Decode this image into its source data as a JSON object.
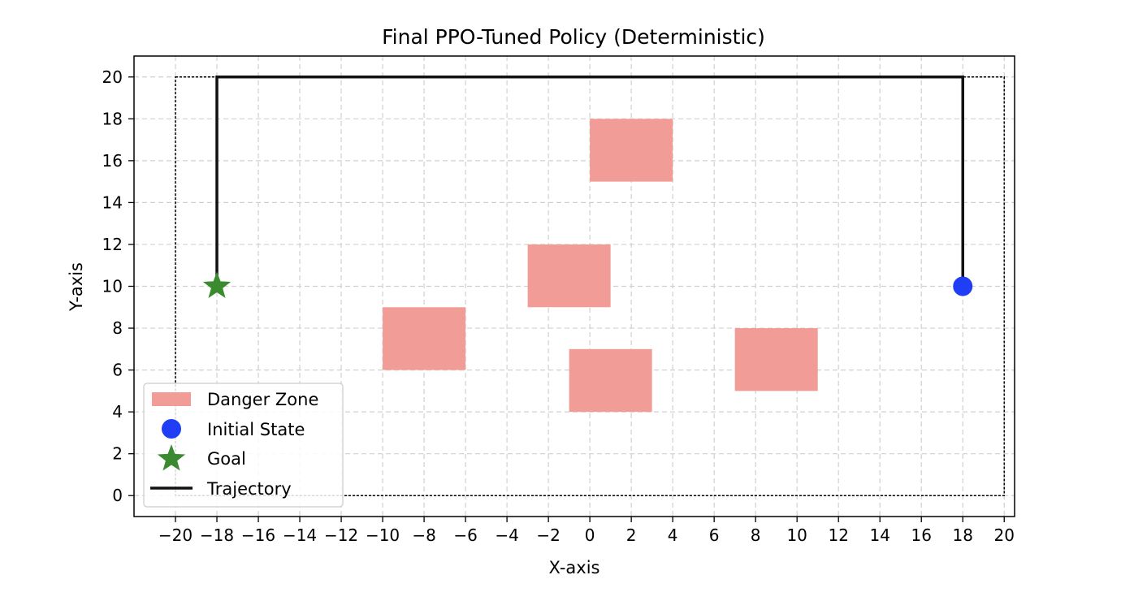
{
  "chart_data": {
    "type": "scatter",
    "title": "Final PPO-Tuned Policy (Deterministic)",
    "xlabel": "X-axis",
    "ylabel": "Y-axis",
    "xlim": [
      -22,
      20.5
    ],
    "ylim": [
      -1,
      21
    ],
    "xticks": [
      -20,
      -18,
      -16,
      -14,
      -12,
      -10,
      -8,
      -6,
      -4,
      -2,
      0,
      2,
      4,
      6,
      8,
      10,
      12,
      14,
      16,
      18,
      20
    ],
    "yticks": [
      0,
      2,
      4,
      6,
      8,
      10,
      12,
      14,
      16,
      18,
      20
    ],
    "grid": true,
    "boundary": {
      "x": [
        -20,
        20
      ],
      "y": [
        0,
        20
      ]
    },
    "danger_zones": [
      {
        "x": 0,
        "y": 15,
        "width": 4,
        "height": 3
      },
      {
        "x": -3,
        "y": 9,
        "width": 4,
        "height": 3
      },
      {
        "x": -10,
        "y": 6,
        "width": 4,
        "height": 3
      },
      {
        "x": -1,
        "y": 4,
        "width": 4,
        "height": 3
      },
      {
        "x": 7,
        "y": 5,
        "width": 4,
        "height": 3
      }
    ],
    "initial_state": {
      "x": 18,
      "y": 10
    },
    "goal": {
      "x": -18,
      "y": 10
    },
    "trajectory": {
      "x": [
        18,
        18,
        -18,
        -18
      ],
      "y": [
        10,
        20,
        20,
        10
      ]
    },
    "legend": {
      "placement": "lower-left",
      "entries": [
        "Danger Zone",
        "Initial State",
        "Goal",
        "Trajectory"
      ]
    },
    "colors": {
      "danger": "#f19c96",
      "initial": "#1f3ef5",
      "goal": "#3a8a30",
      "trajectory": "#111111",
      "grid": "#d0d0d0"
    }
  }
}
